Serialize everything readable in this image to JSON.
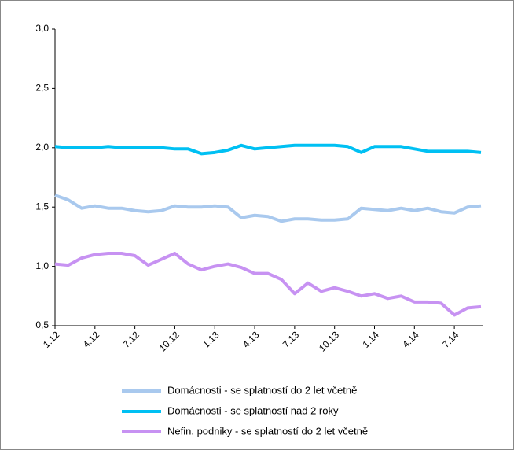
{
  "chart_data": {
    "type": "line",
    "categories": [
      "1.12",
      null,
      null,
      "4.12",
      null,
      null,
      "7.12",
      null,
      null,
      "10.12",
      null,
      null,
      "1.13",
      null,
      null,
      "4.13",
      null,
      null,
      "7.13",
      null,
      null,
      "10.13",
      null,
      null,
      "1.14",
      null,
      null,
      "4.14",
      null,
      null,
      "7.14",
      null,
      null
    ],
    "series": [
      {
        "name": "Domácnosti - se splatností do 2 let včetně",
        "color": "#a9c9ee",
        "values": [
          1.6,
          1.56,
          1.49,
          1.51,
          1.49,
          1.49,
          1.47,
          1.46,
          1.47,
          1.51,
          1.5,
          1.5,
          1.51,
          1.5,
          1.41,
          1.43,
          1.42,
          1.38,
          1.4,
          1.4,
          1.39,
          1.39,
          1.4,
          1.49,
          1.48,
          1.47,
          1.49,
          1.47,
          1.49,
          1.46,
          1.45,
          1.5,
          1.51
        ]
      },
      {
        "name": "Domácnosti - se splatností nad 2 roky",
        "color": "#00c0f3",
        "values": [
          2.01,
          2.0,
          2.0,
          2.0,
          2.01,
          2.0,
          2.0,
          2.0,
          2.0,
          1.99,
          1.99,
          1.95,
          1.96,
          1.98,
          2.02,
          1.99,
          2.0,
          2.01,
          2.02,
          2.02,
          2.02,
          2.02,
          2.01,
          1.96,
          2.01,
          2.01,
          2.01,
          1.99,
          1.97,
          1.97,
          1.97,
          1.97,
          1.96
        ]
      },
      {
        "name": "Nefin. podniky - se splatností do 2 let včetně",
        "color": "#c792f2",
        "values": [
          1.02,
          1.01,
          1.07,
          1.1,
          1.11,
          1.11,
          1.09,
          1.01,
          1.06,
          1.11,
          1.02,
          0.97,
          1.0,
          1.02,
          0.99,
          0.94,
          0.94,
          0.89,
          0.77,
          0.86,
          0.79,
          0.82,
          0.79,
          0.75,
          0.77,
          0.73,
          0.75,
          0.7,
          0.7,
          0.69,
          0.59,
          0.65,
          0.66
        ]
      }
    ],
    "ylim": [
      0.5,
      3.0
    ],
    "yticks": [
      {
        "value": 0.5,
        "label": "0,5"
      },
      {
        "value": 1.0,
        "label": "1,0"
      },
      {
        "value": 1.5,
        "label": "1,5"
      },
      {
        "value": 2.0,
        "label": "2,0"
      },
      {
        "value": 2.5,
        "label": "2,5"
      },
      {
        "value": 3.0,
        "label": "3,0"
      }
    ],
    "grid": false
  }
}
